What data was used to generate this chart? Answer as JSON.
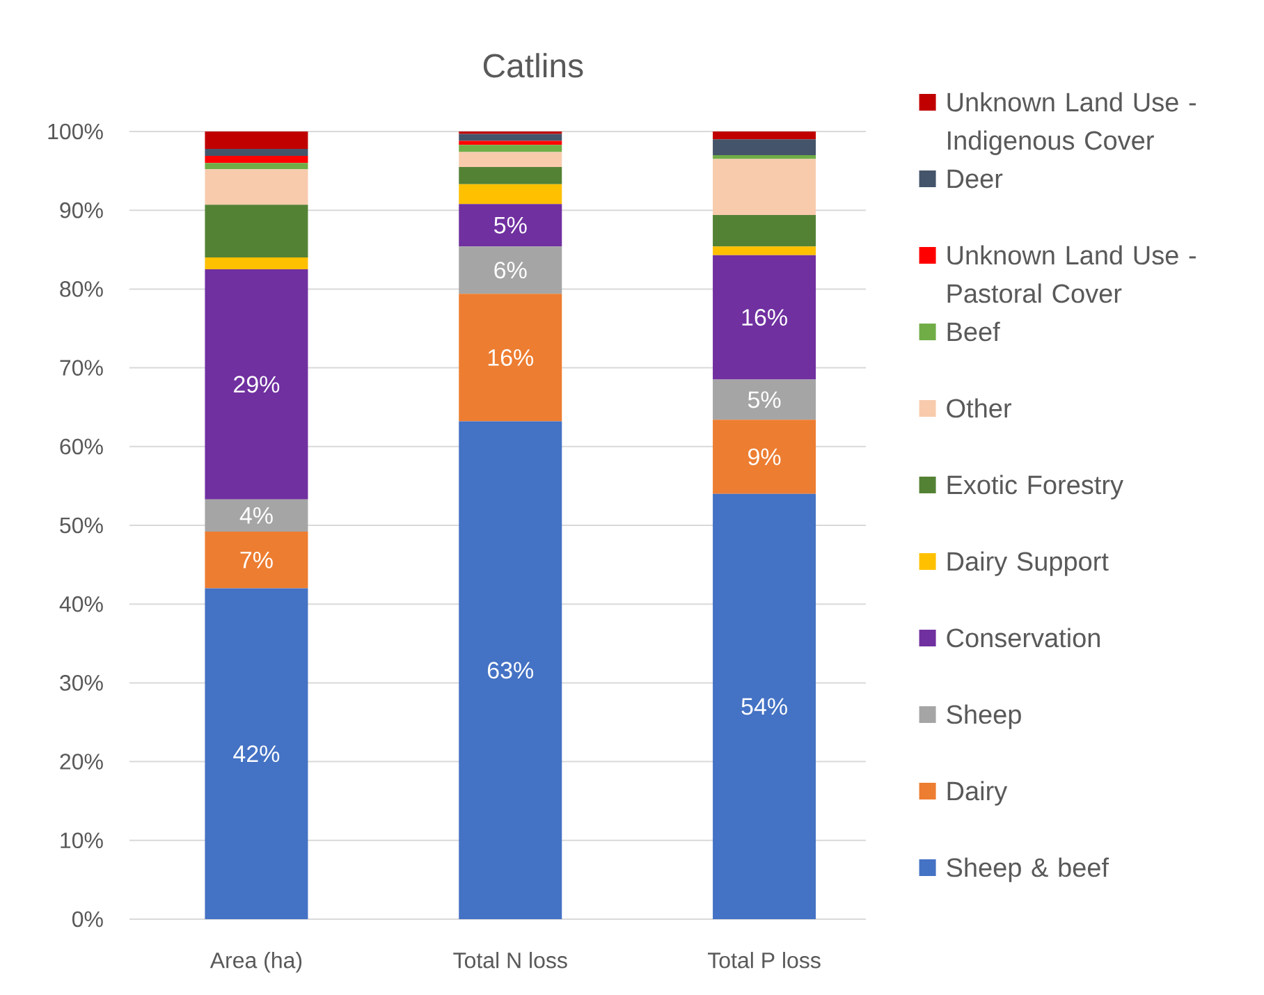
{
  "chart_data": {
    "type": "bar",
    "title": "Catlins",
    "categories": [
      "Area (ha)",
      "Total N loss",
      "Total P loss"
    ],
    "stacked": true,
    "series": [
      {
        "name": "Sheep & beef",
        "color": "#4472c4",
        "values": [
          42.0,
          63.2,
          54.0
        ],
        "value_labels": [
          "42%",
          "63%",
          "54%"
        ]
      },
      {
        "name": "Dairy",
        "color": "#ed7d31",
        "values": [
          7.2,
          16.2,
          9.4
        ],
        "value_labels": [
          "7%",
          "16%",
          "9%"
        ]
      },
      {
        "name": "Sheep",
        "color": "#a5a5a5",
        "values": [
          4.1,
          6.0,
          5.1
        ],
        "value_labels": [
          "4%",
          "6%",
          "5%"
        ]
      },
      {
        "name": "Conservation",
        "color": "#7030a0",
        "values": [
          29.2,
          5.4,
          15.8
        ],
        "value_labels": [
          "29%",
          "5%",
          "16%"
        ]
      },
      {
        "name": "Dairy Support",
        "color": "#ffc000",
        "values": [
          1.5,
          2.5,
          1.1
        ]
      },
      {
        "name": "Exotic Forestry",
        "color": "#548235",
        "values": [
          6.7,
          2.2,
          4.0
        ]
      },
      {
        "name": "Other",
        "color": "#f8cbad",
        "values": [
          4.5,
          1.9,
          7.1
        ]
      },
      {
        "name": "Beef",
        "color": "#70ad47",
        "values": [
          0.8,
          0.9,
          0.5
        ]
      },
      {
        "name": "Unknown Land Use - Pastoral Cover",
        "color": "#ff0000",
        "values": [
          0.9,
          0.5,
          0
        ]
      },
      {
        "name": "Deer",
        "color": "#44546a",
        "values": [
          0.9,
          0.9,
          2.0
        ]
      },
      {
        "name": "Unknown Land Use - Indigenous Cover",
        "color": "#c00000",
        "values": [
          2.2,
          0.3,
          1.0
        ]
      }
    ],
    "ylim": [
      0,
      100
    ],
    "yticks": [
      {
        "value": 0,
        "label": "0%"
      },
      {
        "value": 10,
        "label": "10%"
      },
      {
        "value": 20,
        "label": "20%"
      },
      {
        "value": 30,
        "label": "30%"
      },
      {
        "value": 40,
        "label": "40%"
      },
      {
        "value": 50,
        "label": "50%"
      },
      {
        "value": 60,
        "label": "60%"
      },
      {
        "value": 70,
        "label": "70%"
      },
      {
        "value": 80,
        "label": "80%"
      },
      {
        "value": 90,
        "label": "90%"
      },
      {
        "value": 100,
        "label": "100%"
      }
    ],
    "grid": "y",
    "legend": "right"
  }
}
